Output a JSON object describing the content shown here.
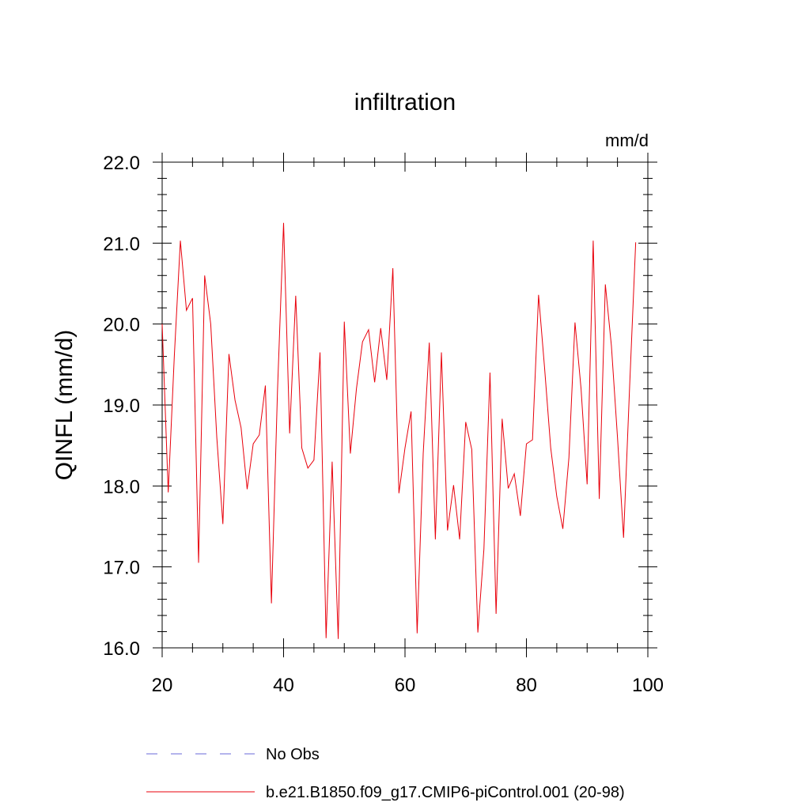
{
  "chart_data": {
    "type": "line",
    "title": "infiltration",
    "units": "mm/d",
    "ylabel": "QINFL  (mm/d)",
    "xlabel": "",
    "xlim": [
      20,
      100
    ],
    "ylim": [
      16.0,
      22.0
    ],
    "xticks": [
      20,
      40,
      60,
      80,
      100
    ],
    "yticks": [
      16.0,
      17.0,
      18.0,
      19.0,
      20.0,
      21.0,
      22.0
    ],
    "grid": false,
    "series": [
      {
        "name": "No Obs",
        "color": "#6a6ad8",
        "style": "dashed",
        "x": [],
        "values": []
      },
      {
        "name": "b.e21.B1850.f09_g17.CMIP6-piControl.001 (20-98)",
        "color": "#e8000b",
        "style": "solid",
        "x": [
          20,
          21,
          22,
          23,
          24,
          25,
          26,
          27,
          28,
          29,
          30,
          31,
          32,
          33,
          34,
          35,
          36,
          37,
          38,
          39,
          40,
          41,
          42,
          43,
          44,
          45,
          46,
          47,
          48,
          49,
          50,
          51,
          52,
          53,
          54,
          55,
          56,
          57,
          58,
          59,
          60,
          61,
          62,
          63,
          64,
          65,
          66,
          67,
          68,
          69,
          70,
          71,
          72,
          73,
          74,
          75,
          76,
          77,
          78,
          79,
          80,
          81,
          82,
          83,
          84,
          85,
          86,
          87,
          88,
          89,
          90,
          91,
          92,
          93,
          94,
          95,
          96,
          97,
          98
        ],
        "values": [
          20.0,
          17.92,
          19.6,
          21.03,
          20.17,
          20.32,
          17.05,
          20.6,
          20.0,
          18.6,
          17.53,
          19.63,
          19.06,
          18.72,
          17.96,
          18.52,
          18.63,
          19.24,
          16.55,
          19.18,
          21.25,
          18.65,
          20.35,
          18.47,
          18.22,
          18.32,
          19.65,
          16.12,
          18.3,
          16.11,
          20.03,
          18.4,
          19.2,
          19.78,
          19.93,
          19.28,
          19.95,
          19.31,
          20.69,
          17.91,
          18.47,
          18.92,
          16.18,
          18.4,
          19.77,
          17.34,
          19.65,
          17.45,
          18.01,
          17.34,
          18.79,
          18.45,
          16.19,
          17.22,
          19.4,
          16.42,
          18.83,
          17.97,
          18.15,
          17.63,
          18.52,
          18.57,
          20.36,
          19.45,
          18.47,
          17.87,
          17.47,
          18.35,
          20.02,
          19.2,
          18.02,
          21.03,
          17.84,
          20.49,
          19.73,
          18.6,
          17.36,
          19.23,
          21.01
        ]
      }
    ]
  }
}
